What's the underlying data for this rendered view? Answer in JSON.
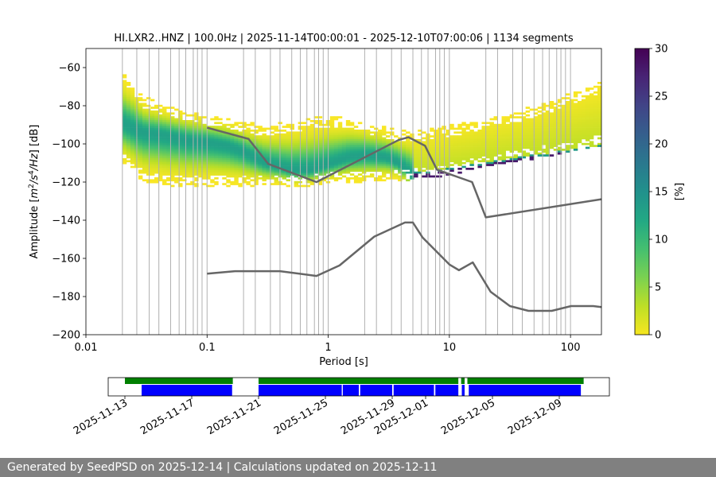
{
  "chart_data": [
    {
      "type": "heatmap",
      "title": "HI.LXR2..HNZ | 100.0Hz | 2025-11-14T00:00:01 - 2025-12-10T07:00:06 | 1134 segments",
      "xlabel": "Period [s]",
      "ylabel_prefix": "Amplitude [",
      "ylabel_m": "m",
      "ylabel_m_exp": "2",
      "ylabel_s": "/s",
      "ylabel_s_exp": "4",
      "ylabel_suffix": "/Hz] [dB]",
      "xscale": "log",
      "xlim": [
        0.01,
        180
      ],
      "ylim": [
        -200,
        -50
      ],
      "x_ticks": [
        {
          "value": 0.01,
          "label": "0.01"
        },
        {
          "value": 0.1,
          "label": "0.1"
        },
        {
          "value": 1,
          "label": "1"
        },
        {
          "value": 10,
          "label": "10"
        },
        {
          "value": 100,
          "label": "100"
        }
      ],
      "y_ticks": [
        {
          "value": -60,
          "label": "−60"
        },
        {
          "value": -80,
          "label": "−80"
        },
        {
          "value": -100,
          "label": "−100"
        },
        {
          "value": -120,
          "label": "−120"
        },
        {
          "value": -140,
          "label": "−140"
        },
        {
          "value": -160,
          "label": "−160"
        },
        {
          "value": -180,
          "label": "−180"
        },
        {
          "value": -200,
          "label": "−200"
        }
      ],
      "grid": "vertical lines at PSD bin periods",
      "grid_periods": [
        0.02,
        0.0263,
        0.0333,
        0.04,
        0.05,
        0.0588,
        0.0667,
        0.0769,
        0.0833,
        0.0909,
        0.1,
        0.2,
        0.25,
        0.3333,
        0.4,
        0.5,
        0.5882,
        0.6667,
        0.7692,
        0.8333,
        0.9091,
        1,
        2,
        2.5,
        3.3333,
        4,
        5,
        5.8824,
        6.6667,
        7.6923,
        8.3333,
        9.0909,
        10,
        20,
        25,
        33.3333,
        40,
        50,
        58.8235,
        66.6667,
        76.9231,
        83.3333,
        90.9091,
        100
      ],
      "density_profile": {
        "period": [
          0.02,
          0.025,
          0.03,
          0.04,
          0.05,
          0.07,
          0.1,
          0.15,
          0.2,
          0.3,
          0.5,
          0.7,
          1,
          1.5,
          2,
          3,
          4,
          5,
          7,
          10,
          15,
          20,
          30,
          50,
          70,
          100,
          180
        ],
        "mode": [
          -89,
          -92,
          -94,
          -95,
          -96,
          -98,
          -99,
          -101,
          -104,
          -110,
          -114,
          -114,
          -111,
          -107,
          -106,
          -107,
          -111,
          -117,
          -117,
          -115,
          -113,
          -112,
          -110,
          -108,
          -107,
          -105,
          -103
        ],
        "high": [
          -62,
          -68,
          -75,
          -78,
          -80,
          -82,
          -84,
          -86,
          -88,
          -90,
          -88,
          -86,
          -85,
          -86,
          -88,
          -91,
          -93,
          -93,
          -92,
          -90,
          -88,
          -86,
          -84,
          -80,
          -77,
          -73,
          -67
        ],
        "low": [
          -111,
          -116,
          -120,
          -121,
          -122,
          -122,
          -122,
          -122,
          -122,
          -122,
          -122,
          -122,
          -121,
          -120,
          -120,
          -119,
          -119,
          -119,
          -118,
          -116,
          -114,
          -112,
          -110,
          -108,
          -106,
          -104,
          -101
        ],
        "sharp_min_period": 5
      },
      "reference_curves": [
        {
          "name": "",
          "x": [
            0.1,
            0.22,
            0.32,
            0.8,
            3.8,
            4.6,
            6.3,
            7.9,
            15.4,
            20,
            180
          ],
          "y": [
            -91.5,
            -97.4,
            -110.5,
            -120,
            -98,
            -96.5,
            -101,
            -113.5,
            -120,
            -138.5,
            -129
          ]
        },
        {
          "name": "",
          "x": [
            0.1,
            0.17,
            0.4,
            0.8,
            1.24,
            2.4,
            4.3,
            5.0,
            6.0,
            10,
            12,
            15.6,
            21.9,
            31.6,
            45,
            70,
            101,
            154,
            180
          ],
          "y": [
            -168,
            -166.7,
            -166.7,
            -169.2,
            -163.7,
            -148.6,
            -141.2,
            -141.2,
            -149,
            -163.2,
            -166.2,
            -162.1,
            -177.5,
            -185,
            -187.5,
            -187.5,
            -185,
            -185,
            -185.5
          ]
        }
      ],
      "colorbar": {
        "label": "[%]",
        "range": [
          0,
          30
        ],
        "ticks": [
          "0",
          "5",
          "10",
          "15",
          "20",
          "25",
          "30"
        ],
        "colormap": "viridis_r",
        "zero_color": "#ffffff"
      }
    },
    {
      "type": "timeline",
      "x_type": "date",
      "xlim": [
        "2025-11-12",
        "2025-12-12"
      ],
      "tick_labels": [
        "2025-11-13",
        "2025-11-17",
        "2025-11-21",
        "2025-11-25",
        "2025-11-29",
        "2025-12-01",
        "2025-12-05",
        "2025-12-09"
      ],
      "tick_dates": [
        "2025-11-13",
        "2025-11-17",
        "2025-11-21",
        "2025-11-25",
        "2025-11-29",
        "2025-12-01",
        "2025-12-05",
        "2025-12-09"
      ],
      "series": [
        {
          "color": "#008000",
          "intervals": [
            [
              "2025-11-13T00:00",
              "2025-11-19T11:00"
            ],
            [
              "2025-11-21T00:00",
              "2025-12-02T23:00"
            ],
            [
              "2025-12-03T03:00",
              "2025-12-03T08:00"
            ],
            [
              "2025-12-03T12:00",
              "2025-12-10T11:00"
            ]
          ]
        },
        {
          "color": "#0000ff",
          "intervals": [
            [
              "2025-11-14T00:00",
              "2025-11-19T10:00"
            ],
            [
              "2025-11-21T00:00",
              "2025-11-25T23:30"
            ],
            [
              "2025-11-26T01:00",
              "2025-11-27T00:00"
            ],
            [
              "2025-11-27T02:00",
              "2025-11-29T00:00"
            ],
            [
              "2025-11-29T02:00",
              "2025-12-01T12:00"
            ],
            [
              "2025-12-01T14:00",
              "2025-12-02T23:00"
            ],
            [
              "2025-12-03T04:00",
              "2025-12-03T08:00"
            ],
            [
              "2025-12-03T14:00",
              "2025-12-10T07:00"
            ]
          ]
        }
      ]
    }
  ],
  "footer": {
    "text": "Generated by SeedPSD on 2025-12-14 | Calculations updated on 2025-12-11"
  }
}
